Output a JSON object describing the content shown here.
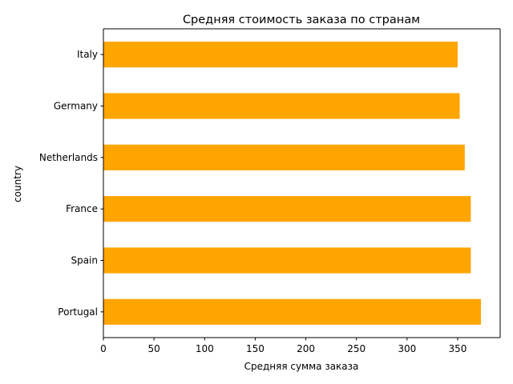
{
  "chart_data": {
    "type": "bar",
    "orientation": "horizontal",
    "title": "Средняя стоимость заказа по странам",
    "xlabel": "Средняя сумма заказа",
    "ylabel": "country",
    "categories": [
      "Portugal",
      "Spain",
      "France",
      "Netherlands",
      "Germany",
      "Italy"
    ],
    "values": [
      373,
      363,
      363,
      357,
      352,
      350
    ],
    "xlim": [
      0,
      392
    ],
    "xticks": [
      0,
      50,
      100,
      150,
      200,
      250,
      300,
      350
    ],
    "grid": false,
    "bar_color": "#ffa500"
  }
}
